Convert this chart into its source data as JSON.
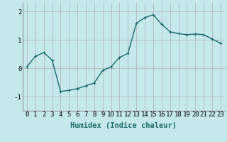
{
  "title": "",
  "xlabel": "Humidex (Indice chaleur)",
  "background_color": "#c5e8eb",
  "line_color": "#1a6b6b",
  "marker": "+",
  "x": [
    0,
    1,
    2,
    3,
    4,
    5,
    6,
    7,
    8,
    9,
    10,
    11,
    12,
    13,
    14,
    15,
    16,
    17,
    18,
    19,
    20,
    21,
    22,
    23
  ],
  "y": [
    0.05,
    0.42,
    0.55,
    0.28,
    -0.82,
    -0.78,
    -0.72,
    -0.62,
    -0.52,
    -0.08,
    0.05,
    0.38,
    0.52,
    1.58,
    1.78,
    1.88,
    1.55,
    1.28,
    1.22,
    1.18,
    1.2,
    1.18,
    1.03,
    0.88
  ],
  "ylim": [
    -1.5,
    2.3
  ],
  "xlim": [
    -0.5,
    23.5
  ],
  "yticks": [
    -1,
    0,
    1,
    2
  ],
  "ytick_labels": [
    "-1",
    "0",
    "1",
    "2"
  ],
  "xticks": [
    0,
    1,
    2,
    3,
    4,
    5,
    6,
    7,
    8,
    9,
    10,
    11,
    12,
    13,
    14,
    15,
    16,
    17,
    18,
    19,
    20,
    21,
    22,
    23
  ],
  "grid_color": "#b0b0b0",
  "linewidth": 1.0,
  "markersize": 3,
  "tick_fontsize": 6.5,
  "xlabel_fontsize": 7.5
}
